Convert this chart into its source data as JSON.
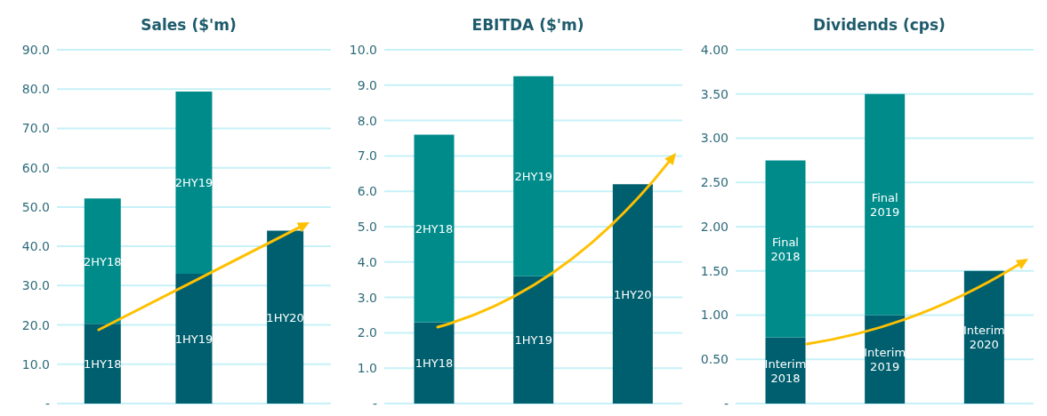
{
  "chart_data": [
    {
      "type": "bar",
      "title": "Sales ($'m)",
      "categories": [
        null,
        null,
        null
      ],
      "stacked": true,
      "grid": "y",
      "tick_labels": "y",
      "ylim": [
        0,
        90
      ],
      "yticks": [
        {
          "value": 0,
          "label": "-"
        },
        {
          "value": 10,
          "label": "10.0"
        },
        {
          "value": 20,
          "label": "20.0"
        },
        {
          "value": 30,
          "label": "30.0"
        },
        {
          "value": 40,
          "label": "40.0"
        },
        {
          "value": 50,
          "label": "50.0"
        },
        {
          "value": 60,
          "label": "60.0"
        },
        {
          "value": 70,
          "label": "70.0"
        },
        {
          "value": 80,
          "label": "80.0"
        },
        {
          "value": 90,
          "label": "90.0"
        }
      ],
      "series": [
        {
          "name": "1HY18",
          "color": "#005f6e",
          "values": [
            20.3,
            null,
            null
          ]
        },
        {
          "name": "2HY18",
          "color": "#008b8b",
          "values": [
            31.9,
            null,
            null
          ]
        },
        {
          "name": "1HY19",
          "color": "#005f6e",
          "values": [
            null,
            33.0,
            null
          ]
        },
        {
          "name": "2HY19",
          "color": "#008b8b",
          "values": [
            null,
            46.4,
            null
          ]
        },
        {
          "name": "1HY20",
          "color": "#005f6e",
          "values": [
            null,
            null,
            44.0
          ]
        }
      ]
    },
    {
      "type": "bar",
      "title": "EBITDA ($'m)",
      "categories": [
        null,
        null,
        null
      ],
      "stacked": true,
      "grid": "y",
      "tick_labels": "y",
      "ylim": [
        0,
        10
      ],
      "yticks": [
        {
          "value": 0,
          "label": "-"
        },
        {
          "value": 1,
          "label": "1.0"
        },
        {
          "value": 2,
          "label": "2.0"
        },
        {
          "value": 3,
          "label": "3.0"
        },
        {
          "value": 4,
          "label": "4.0"
        },
        {
          "value": 5,
          "label": "5.0"
        },
        {
          "value": 6,
          "label": "6.0"
        },
        {
          "value": 7,
          "label": "7.0"
        },
        {
          "value": 8,
          "label": "8.0"
        },
        {
          "value": 9,
          "label": "9.0"
        },
        {
          "value": 10,
          "label": "10.0"
        }
      ],
      "series": [
        {
          "name": "1HY18",
          "color": "#005f6e",
          "values": [
            2.3,
            null,
            null
          ]
        },
        {
          "name": "2HY18",
          "color": "#008b8b",
          "values": [
            5.3,
            null,
            null
          ]
        },
        {
          "name": "1HY19",
          "color": "#005f6e",
          "values": [
            null,
            3.6,
            null
          ]
        },
        {
          "name": "2HY19",
          "color": "#008b8b",
          "values": [
            null,
            5.65,
            null
          ]
        },
        {
          "name": "1HY20",
          "color": "#005f6e",
          "values": [
            null,
            null,
            6.2
          ]
        }
      ]
    },
    {
      "type": "bar",
      "title": "Dividends (cps)",
      "categories": [
        null,
        null,
        null
      ],
      "stacked": true,
      "grid": "y",
      "tick_labels": "y",
      "ylim": [
        0,
        4
      ],
      "yticks": [
        {
          "value": 0,
          "label": "-"
        },
        {
          "value": 0.5,
          "label": "0.50"
        },
        {
          "value": 1,
          "label": "1.00"
        },
        {
          "value": 1.5,
          "label": "1.50"
        },
        {
          "value": 2,
          "label": "2.00"
        },
        {
          "value": 2.5,
          "label": "2.50"
        },
        {
          "value": 3,
          "label": "3.00"
        },
        {
          "value": 3.5,
          "label": "3.50"
        },
        {
          "value": 4,
          "label": "4.00"
        }
      ],
      "series": [
        {
          "name": "Interim 2018",
          "color": "#005f6e",
          "values": [
            0.75,
            null,
            null
          ]
        },
        {
          "name": "Final 2018",
          "color": "#008b8b",
          "values": [
            2.0,
            null,
            null
          ]
        },
        {
          "name": "Interim 2019",
          "color": "#005f6e",
          "values": [
            null,
            1.0,
            null
          ]
        },
        {
          "name": "Final 2019",
          "color": "#008b8b",
          "values": [
            null,
            2.5,
            null
          ]
        },
        {
          "name": "Interim 2020",
          "color": "#005f6e",
          "values": [
            null,
            null,
            1.5
          ]
        }
      ]
    }
  ]
}
